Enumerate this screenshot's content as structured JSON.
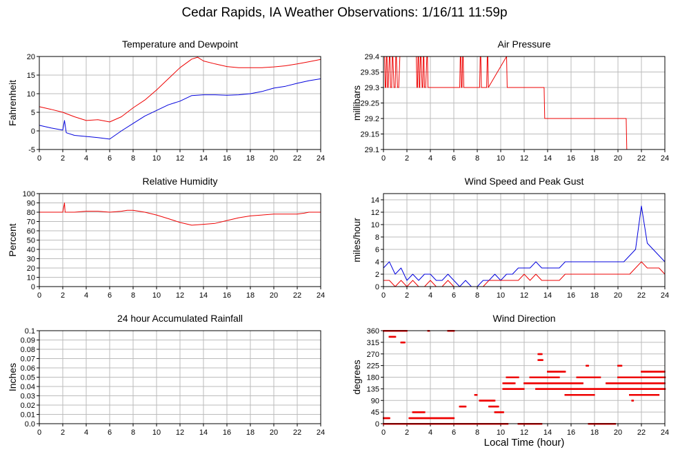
{
  "page": {
    "title": "Cedar Rapids, IA Weather Observations: 1/16/11 11:59p",
    "xaxis_title": "Local Time (hour)"
  },
  "colors": {
    "red": "#ee0000",
    "blue": "#0000dd",
    "grid": "#bbbbbb",
    "axis": "#000000"
  },
  "chart_data": [
    {
      "id": "temp",
      "type": "line",
      "title": "Temperature and Dewpoint",
      "xlabel": "",
      "ylabel": "Fahrenheit",
      "xlim": [
        0,
        24
      ],
      "ylim": [
        -5,
        20
      ],
      "xticks": [
        0,
        2,
        4,
        6,
        8,
        10,
        12,
        14,
        16,
        18,
        20,
        22,
        24
      ],
      "yticks": [
        -5,
        0,
        5,
        10,
        15,
        20
      ],
      "grid": true,
      "series": [
        {
          "color": "red",
          "x": [
            0,
            1,
            2,
            3,
            4,
            5,
            6,
            7,
            8,
            9,
            10,
            11,
            12,
            13,
            13.5,
            14,
            15,
            16,
            17,
            18,
            19,
            20,
            21,
            22,
            23,
            24
          ],
          "y": [
            6.5,
            5.8,
            5.0,
            3.8,
            2.8,
            3.0,
            2.4,
            3.8,
            6.2,
            8.3,
            11.0,
            14.0,
            17.0,
            19.3,
            19.8,
            18.8,
            18.0,
            17.3,
            17.0,
            17.0,
            17.0,
            17.2,
            17.5,
            18.0,
            18.6,
            19.2
          ]
        },
        {
          "color": "blue",
          "x": [
            0,
            1,
            2,
            2.15,
            2.3,
            3,
            4,
            5,
            6,
            7,
            8,
            9,
            10,
            11,
            12,
            13,
            14,
            15,
            16,
            17,
            18,
            19,
            20,
            21,
            22,
            23,
            24
          ],
          "y": [
            1.5,
            0.8,
            0.2,
            2.8,
            -0.5,
            -1.2,
            -1.5,
            -1.8,
            -2.2,
            0.0,
            2.0,
            4.0,
            5.5,
            7.0,
            8.0,
            9.5,
            9.7,
            9.7,
            9.6,
            9.7,
            10.0,
            10.6,
            11.5,
            12.0,
            12.8,
            13.5,
            14.0
          ]
        }
      ]
    },
    {
      "id": "pressure",
      "type": "line",
      "title": "Air Pressure",
      "xlabel": "",
      "ylabel": "millibars",
      "xlim": [
        0,
        24
      ],
      "ylim": [
        29.1,
        29.4
      ],
      "xticks": [
        0,
        2,
        4,
        6,
        8,
        10,
        12,
        14,
        16,
        18,
        20,
        22,
        24
      ],
      "yticks": [
        29.1,
        29.15,
        29.2,
        29.25,
        29.3,
        29.35,
        29.4
      ],
      "ytick_labels": [
        "29.1",
        "29.15",
        "29.2",
        "29.25",
        "29.3",
        "29.35",
        "29.4"
      ],
      "grid": true,
      "series": [
        {
          "color": "red",
          "x": [
            0,
            0.1,
            0.15,
            0.2,
            0.25,
            0.3,
            0.35,
            0.4,
            0.5,
            0.55,
            0.6,
            0.7,
            0.75,
            0.8,
            0.9,
            1.0,
            1.05,
            1.1,
            1.2,
            1.3,
            1.4,
            1.5,
            2.8,
            2.85,
            2.9,
            2.95,
            3.0,
            3.05,
            3.1,
            3.15,
            3.2,
            3.3,
            3.35,
            3.4,
            3.45,
            3.5,
            3.6,
            3.7,
            3.75,
            3.8,
            3.9,
            4.0,
            6.5,
            6.55,
            6.6,
            6.65,
            6.7,
            6.75,
            6.8,
            6.85,
            6.9,
            8.2,
            8.25,
            8.3,
            8.35,
            8.8,
            8.85,
            8.9,
            8.95,
            10.5,
            10.55,
            13.7,
            13.75,
            20.7,
            20.75,
            24
          ],
          "y": [
            29.4,
            29.4,
            29.3,
            29.3,
            29.4,
            29.4,
            29.3,
            29.3,
            29.4,
            29.4,
            29.3,
            29.3,
            29.4,
            29.4,
            29.3,
            29.3,
            29.4,
            29.4,
            29.3,
            29.3,
            29.4,
            29.4,
            29.4,
            29.3,
            29.3,
            29.4,
            29.4,
            29.3,
            29.3,
            29.4,
            29.4,
            29.3,
            29.3,
            29.4,
            29.4,
            29.3,
            29.3,
            29.4,
            29.4,
            29.3,
            29.3,
            29.3,
            29.3,
            29.4,
            29.4,
            29.3,
            29.3,
            29.4,
            29.4,
            29.3,
            29.3,
            29.3,
            29.4,
            29.4,
            29.3,
            29.3,
            29.4,
            29.4,
            29.3,
            29.4,
            29.3,
            29.3,
            29.2,
            29.2,
            29.1,
            29.1
          ]
        }
      ]
    },
    {
      "id": "humidity",
      "type": "line",
      "title": "Relative Humidity",
      "xlabel": "",
      "ylabel": "Percent",
      "xlim": [
        0,
        24
      ],
      "ylim": [
        0,
        100
      ],
      "xticks": [
        0,
        2,
        4,
        6,
        8,
        10,
        12,
        14,
        16,
        18,
        20,
        22,
        24
      ],
      "yticks": [
        0,
        10,
        20,
        30,
        40,
        50,
        60,
        70,
        80,
        90,
        100
      ],
      "grid": true,
      "series": [
        {
          "color": "red",
          "x": [
            0,
            1,
            2,
            2.15,
            2.2,
            2.3,
            3,
            4,
            5,
            6,
            7,
            7.5,
            8,
            9,
            10,
            11,
            12,
            13,
            14,
            15,
            16,
            17,
            18,
            19,
            20,
            21,
            22,
            22.6,
            23,
            24
          ],
          "y": [
            80,
            80,
            80,
            90,
            80,
            80,
            80,
            81,
            81,
            80,
            81,
            82,
            82,
            80,
            77,
            73,
            69,
            66,
            67,
            68,
            71,
            74,
            76,
            77,
            78,
            78,
            78,
            79,
            80,
            80
          ]
        }
      ]
    },
    {
      "id": "wind",
      "type": "line",
      "title": "Wind Speed and Peak Gust",
      "xlabel": "",
      "ylabel": "miles/hour",
      "xlim": [
        0,
        24
      ],
      "ylim": [
        0,
        15
      ],
      "xticks": [
        0,
        2,
        4,
        6,
        8,
        10,
        12,
        14,
        16,
        18,
        20,
        22,
        24
      ],
      "yticks": [
        0,
        2,
        4,
        6,
        8,
        10,
        12,
        14
      ],
      "grid": true,
      "series": [
        {
          "color": "blue",
          "x": [
            0,
            0.5,
            1,
            1.5,
            2,
            2.5,
            3,
            3.5,
            4,
            4.5,
            5,
            5.5,
            6,
            6.5,
            7,
            7.5,
            8,
            8.5,
            9,
            9.5,
            10,
            10.5,
            11,
            11.5,
            12,
            12.5,
            13,
            13.5,
            14,
            14.5,
            15,
            15.5,
            16,
            16.5,
            17,
            17.5,
            18,
            18.5,
            19,
            19.5,
            20,
            20.5,
            21,
            21.5,
            22,
            22.5,
            23,
            23.5,
            24
          ],
          "y": [
            3,
            4,
            2,
            3,
            1,
            2,
            1,
            2,
            2,
            1,
            1,
            2,
            1,
            0,
            1,
            0,
            0,
            1,
            1,
            2,
            1,
            2,
            2,
            3,
            3,
            3,
            4,
            3,
            3,
            3,
            3,
            4,
            4,
            4,
            4,
            4,
            4,
            4,
            4,
            4,
            4,
            4,
            5,
            6,
            13,
            7,
            6,
            5,
            4
          ]
        },
        {
          "color": "red",
          "x": [
            0,
            0.5,
            1,
            1.5,
            2,
            2.5,
            3,
            3.5,
            4,
            4.5,
            5,
            5.5,
            6,
            6.5,
            7,
            7.5,
            8,
            8.5,
            9,
            9.5,
            10,
            10.5,
            11,
            11.5,
            12,
            12.5,
            13,
            13.5,
            14,
            14.5,
            15,
            15.5,
            16,
            16.5,
            17,
            17.5,
            18,
            18.5,
            19,
            19.5,
            20,
            20.5,
            21,
            21.5,
            22,
            22.5,
            23,
            23.5,
            24
          ],
          "y": [
            1,
            1,
            0,
            1,
            0,
            1,
            0,
            0,
            1,
            0,
            0,
            1,
            0,
            0,
            0,
            0,
            0,
            0,
            1,
            1,
            1,
            1,
            1,
            1,
            2,
            1,
            2,
            1,
            1,
            1,
            1,
            2,
            2,
            2,
            2,
            2,
            2,
            2,
            2,
            2,
            2,
            2,
            2,
            3,
            4,
            3,
            3,
            3,
            2
          ]
        }
      ]
    },
    {
      "id": "rain",
      "type": "line",
      "title": "24 hour Accumulated Rainfall",
      "xlabel": "",
      "ylabel": "Inches",
      "xlim": [
        0,
        24
      ],
      "ylim": [
        0,
        0.1
      ],
      "xticks": [
        0,
        2,
        4,
        6,
        8,
        10,
        12,
        14,
        16,
        18,
        20,
        22,
        24
      ],
      "yticks": [
        0,
        0.01,
        0.02,
        0.03,
        0.04,
        0.05,
        0.06,
        0.07,
        0.08,
        0.09,
        0.1
      ],
      "ytick_labels": [
        "0.0",
        "0.01",
        "0.02",
        "0.03",
        "0.04",
        "0.05",
        "0.06",
        "0.07",
        "0.08",
        "0.09",
        "0.1"
      ],
      "grid": true,
      "series": [
        {
          "color": "red",
          "x": [
            0,
            24
          ],
          "y": [
            0,
            0
          ]
        }
      ]
    },
    {
      "id": "direction",
      "type": "scatter",
      "title": "Wind Direction",
      "xlabel": "Local Time (hour)",
      "ylabel": "degrees",
      "xlim": [
        0,
        24
      ],
      "ylim": [
        0,
        360
      ],
      "xticks": [
        0,
        2,
        4,
        6,
        8,
        10,
        12,
        14,
        16,
        18,
        20,
        22,
        24
      ],
      "yticks": [
        0,
        45,
        90,
        135,
        180,
        225,
        270,
        315,
        360
      ],
      "grid": true,
      "series": [
        {
          "color": "red",
          "segments": [
            {
              "y": 360,
              "x0": 0.0,
              "x1": 2.0
            },
            {
              "y": 360,
              "x0": 3.8,
              "x1": 3.9
            },
            {
              "y": 360,
              "x0": 5.5,
              "x1": 6.0
            },
            {
              "y": 337,
              "x0": 0.5,
              "x1": 1.0
            },
            {
              "y": 315,
              "x0": 1.5,
              "x1": 1.8
            },
            {
              "y": 22,
              "x0": 0.0,
              "x1": 0.5
            },
            {
              "y": 22,
              "x0": 2.2,
              "x1": 6.0
            },
            {
              "y": 45,
              "x0": 2.5,
              "x1": 3.5
            },
            {
              "y": 0,
              "x0": 0.0,
              "x1": 10.6
            },
            {
              "y": 0,
              "x0": 11.5,
              "x1": 13.5
            },
            {
              "y": 0,
              "x0": 17.5,
              "x1": 19.8
            },
            {
              "y": 45,
              "x0": 9.5,
              "x1": 10.2
            },
            {
              "y": 67,
              "x0": 6.5,
              "x1": 7.0
            },
            {
              "y": 67,
              "x0": 9.0,
              "x1": 9.8
            },
            {
              "y": 90,
              "x0": 8.2,
              "x1": 9.5
            },
            {
              "y": 112,
              "x0": 7.8,
              "x1": 8.0
            },
            {
              "y": 157,
              "x0": 10.2,
              "x1": 11.2
            },
            {
              "y": 180,
              "x0": 10.5,
              "x1": 11.5
            },
            {
              "y": 180,
              "x0": 12.5,
              "x1": 15.0
            },
            {
              "y": 180,
              "x0": 16.5,
              "x1": 18.5
            },
            {
              "y": 180,
              "x0": 20.0,
              "x1": 24.0
            },
            {
              "y": 202,
              "x0": 14.0,
              "x1": 15.5
            },
            {
              "y": 202,
              "x0": 22.0,
              "x1": 24.0
            },
            {
              "y": 157,
              "x0": 12.0,
              "x1": 17.0
            },
            {
              "y": 157,
              "x0": 19.0,
              "x1": 24.0
            },
            {
              "y": 135,
              "x0": 10.2,
              "x1": 12.0
            },
            {
              "y": 135,
              "x0": 13.0,
              "x1": 24.0
            },
            {
              "y": 112,
              "x0": 15.5,
              "x1": 18.0
            },
            {
              "y": 112,
              "x0": 21.0,
              "x1": 23.5
            },
            {
              "y": 247,
              "x0": 13.2,
              "x1": 13.6
            },
            {
              "y": 270,
              "x0": 13.2,
              "x1": 13.5
            },
            {
              "y": 225,
              "x0": 17.3,
              "x1": 17.5
            },
            {
              "y": 225,
              "x0": 20.0,
              "x1": 20.3
            },
            {
              "y": 90,
              "x0": 21.2,
              "x1": 21.3
            }
          ]
        }
      ]
    }
  ]
}
